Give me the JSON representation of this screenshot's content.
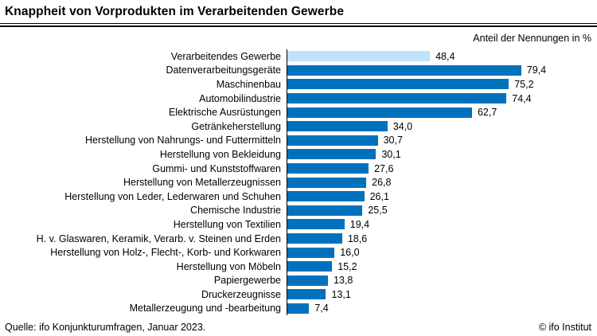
{
  "title": "Knappheit von Vorprodukten im Verarbeitenden Gewerbe",
  "axis_note": "Anteil der Nennungen in %",
  "footer": {
    "source": "Quelle: ifo Konjunkturumfragen, Januar 2023.",
    "copyright": "© ifo Institut"
  },
  "colors": {
    "bar": "#0072BD",
    "highlight_bar": "#BFE2FA",
    "axis": "#000000"
  },
  "chart_data": {
    "type": "bar",
    "orientation": "horizontal",
    "title": "Knappheit von Vorprodukten im Verarbeitenden Gewerbe",
    "subtitle": "Anteil der Nennungen in %",
    "xlabel": "Anteil der Nennungen in %",
    "ylabel": "",
    "xlim": [
      0,
      100
    ],
    "grid": false,
    "legend": false,
    "highlight_index": 0,
    "categories": [
      "Verarbeitendes Gewerbe",
      "Datenverarbeitungsgeräte",
      "Maschinenbau",
      "Automobilindustrie",
      "Elektrische Ausrüstungen",
      "Getränkeherstellung",
      "Herstellung von Nahrungs- und Futtermitteln",
      "Herstellung von Bekleidung",
      "Gummi- und Kunststoffwaren",
      "Herstellung von Metallerzeugnissen",
      "Herstellung von Leder, Lederwaren und Schuhen",
      "Chemische Industrie",
      "Herstellung von Textilien",
      "H. v. Glaswaren, Keramik, Verarb. v. Steinen und Erden",
      "Herstellung von Holz-, Flecht-, Korb- und Korkwaren",
      "Herstellung von Möbeln",
      "Papiergewerbe",
      "Druckerzeugnisse",
      "Metallerzeugung und -bearbeitung"
    ],
    "values": [
      48.4,
      79.4,
      75.2,
      74.4,
      62.7,
      34.0,
      30.7,
      30.1,
      27.6,
      26.8,
      26.1,
      25.5,
      19.4,
      18.6,
      16.0,
      15.2,
      13.8,
      13.1,
      7.4
    ],
    "value_labels": [
      "48,4",
      "79,4",
      "75,2",
      "74,4",
      "62,7",
      "34,0",
      "30,7",
      "30,1",
      "27,6",
      "26,8",
      "26,1",
      "25,5",
      "19,4",
      "18,6",
      "16,0",
      "15,2",
      "13,8",
      "13,1",
      "7,4"
    ]
  }
}
